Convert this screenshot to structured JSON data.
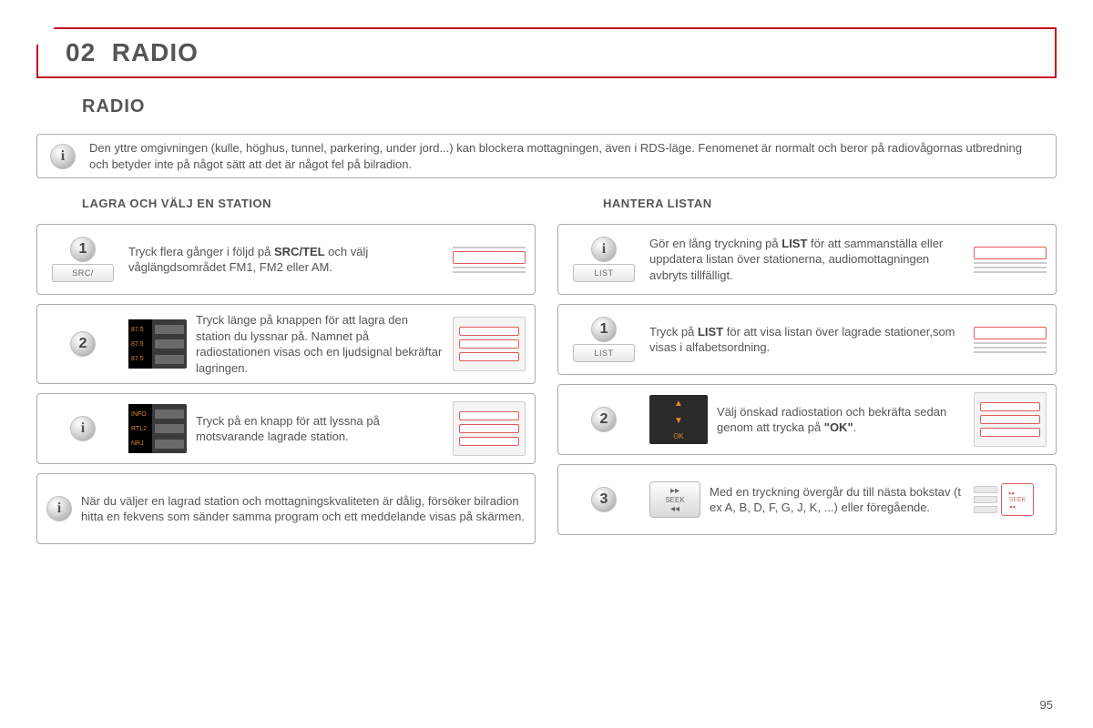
{
  "banner": {
    "number": "02",
    "title": "RADIO"
  },
  "subtitle": "RADIO",
  "intro_info": "Den yttre omgivningen (kulle, höghus, tunnel, parkering, under jord...) kan blockera mottagningen, även i RDS-läge. Fenomenet är normalt och beror på radiovågornas utbredning och betyder inte på något sätt att det är något fel på bilradion.",
  "left": {
    "title": "LAGRA OCH VÄLJ EN STATION",
    "steps": [
      {
        "badge": "1",
        "key_label": "SRC/",
        "text_pre": "Tryck flera gånger i följd på ",
        "text_bold": "SRC/TEL",
        "text_post": " och välj våglängdsområdet FM1, FM2 eller AM."
      },
      {
        "badge": "2",
        "preset_values": [
          "87.5",
          "87.5",
          "87.5"
        ],
        "text": "Tryck länge på knappen för att lagra den station du lyssnar på. Namnet på radiostationen visas och en ljudsignal bekräftar lagringen."
      },
      {
        "badge": "i",
        "preset_values": [
          "INFO",
          "RTL2",
          "NRJ"
        ],
        "text": "Tryck på en knapp för att lyssna på motsvarande lagrade station."
      }
    ],
    "bottom_info": "När du väljer en lagrad station och mottagningskvaliteten är dålig, försöker bilradion hitta en fekvens som sänder samma program och ett meddelande visas på skärmen."
  },
  "right": {
    "title": "HANTERA LISTAN",
    "steps": [
      {
        "badge": "i",
        "key_label": "LIST",
        "text_pre": "Gör en lång tryckning på ",
        "text_bold": "LIST",
        "text_post": " för att sammanställa eller uppdatera listan över stationerna, audiomottagningen avbryts tillfälligt."
      },
      {
        "badge": "1",
        "key_label": "LIST",
        "text_pre": "Tryck på ",
        "text_bold": "LIST",
        "text_post": " för att visa listan över lagrade stationer,som visas i alfabetsordning."
      },
      {
        "badge": "2",
        "text_pre": "Välj önskad radiostation och bekräfta sedan genom att trycka på ",
        "text_bold": "\"OK\"",
        "text_post": "."
      },
      {
        "badge": "3",
        "seek_label": "SEEK",
        "text": "Med en tryckning övergår du till nästa bokstav (t ex A, B, D, F, G, J, K, ...) eller föregående."
      }
    ]
  },
  "page_number": "95",
  "colors": {
    "accent": "#c41022"
  }
}
